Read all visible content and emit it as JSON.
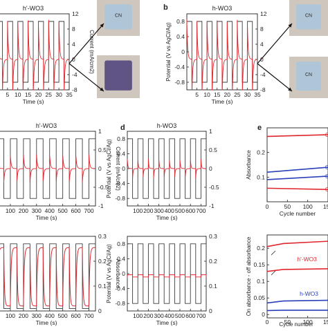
{
  "panel_letters": {
    "b": "b",
    "d": "d",
    "e": "e"
  },
  "colors": {
    "square": "#3a3a3a",
    "trace": "#e0262e",
    "blue": "#2a3fb8",
    "axis": "#222222",
    "photo_bg": "#cfc6bd",
    "film_clear": "#a9c6de",
    "film_dark": "#4b3f7a"
  },
  "photo_text": {
    "tl": "CN",
    "tr": "CN",
    "br": "CN"
  },
  "chart_data": [
    {
      "id": "a",
      "type": "line",
      "title": "h'-WO3",
      "xlabel": "Time (s)",
      "xticks": [
        5,
        10,
        15,
        20,
        25,
        30,
        35
      ],
      "xlim": [
        0,
        35
      ],
      "y2label": "Current (mA/cm2)",
      "y2ticks": [
        12,
        8,
        4,
        0,
        -4,
        -8
      ],
      "y2lim": [
        -8,
        12
      ],
      "series": [
        {
          "kind": "square",
          "period": 5,
          "high": 0.8,
          "low": -0.8
        },
        {
          "kind": "spike",
          "period": 5,
          "peak": 10.5,
          "decay": 0.35
        }
      ]
    },
    {
      "id": "b",
      "type": "line",
      "title": "h-WO3",
      "xlabel": "Time (s)",
      "xticks": [
        5,
        10,
        15,
        20,
        25,
        30,
        35
      ],
      "xlim": [
        0,
        35
      ],
      "ylabel": "Potential (V vs AgCl/Ag)",
      "yticks": [
        0.8,
        0.4,
        0,
        -0.4,
        -0.8
      ],
      "ylim": [
        -1,
        1
      ],
      "y2ticks": [
        12,
        8,
        4,
        0,
        -4,
        -8
      ],
      "y2lim": [
        -8,
        12
      ],
      "series": [
        {
          "kind": "square",
          "period": 5,
          "high": 0.8,
          "low": -0.8
        },
        {
          "kind": "spike",
          "period": 5,
          "peak": 10.5,
          "decay": 0.35
        }
      ]
    },
    {
      "id": "c",
      "type": "line",
      "title": "h'-WO3",
      "xlabel": "Time (s)",
      "xticks": [
        100,
        200,
        300,
        400,
        500,
        600,
        700
      ],
      "xlim": [
        0,
        750
      ],
      "y2label": "Current (mA/cm2)",
      "y2ticks": [
        1.0,
        0.5,
        0,
        -0.5,
        -1.0
      ],
      "y2lim": [
        -1,
        1
      ],
      "series": [
        {
          "kind": "square",
          "period": 100,
          "high": 0.8,
          "low": -0.8
        },
        {
          "kind": "spike",
          "period": 100,
          "peak": 0.38,
          "decay": 6
        }
      ]
    },
    {
      "id": "d",
      "type": "line",
      "title": "h-WO3",
      "xlabel": "Time (s)",
      "xticks": [
        100,
        200,
        300,
        400,
        500,
        600,
        700
      ],
      "xlim": [
        0,
        750
      ],
      "ylabel": "Potential (V vs AgCl/Ag)",
      "yticks": [
        0.8,
        0.4,
        0,
        -0.4,
        -0.8
      ],
      "ylim": [
        -1,
        1
      ],
      "y2ticks": [
        1.0,
        0.5,
        0,
        -0.5,
        -1.0
      ],
      "y2lim": [
        -1,
        1
      ],
      "series": [
        {
          "kind": "square",
          "period": 100,
          "high": 0.8,
          "low": -0.8
        },
        {
          "kind": "spike",
          "period": 100,
          "peak": 0.26,
          "decay": 5
        }
      ]
    },
    {
      "id": "e_top",
      "type": "line",
      "xlabel": "Cycle number",
      "xticks": [
        0,
        50,
        100,
        150
      ],
      "xlim": [
        0,
        150
      ],
      "ylabel": "Absorbance",
      "yticks": [
        0.1,
        0.2
      ],
      "ylim": [
        0.0,
        0.3
      ],
      "right_labels": [
        "0",
        "0",
        "0",
        "0"
      ],
      "series": [
        {
          "color": "red",
          "values": [
            [
              0,
              0.265
            ],
            [
              150,
              0.272
            ]
          ]
        },
        {
          "color": "blue",
          "values": [
            [
              0,
              0.12
            ],
            [
              150,
              0.14
            ]
          ]
        },
        {
          "color": "blue",
          "values": [
            [
              0,
              0.09
            ],
            [
              150,
              0.104
            ]
          ]
        },
        {
          "color": "red",
          "values": [
            [
              0,
              0.055
            ],
            [
              150,
              0.05
            ]
          ]
        }
      ]
    },
    {
      "id": "e_bottom",
      "type": "line",
      "xlabel": "Cycle number",
      "xticks": [
        0,
        50,
        100,
        150
      ],
      "xlim": [
        0,
        150
      ],
      "ylabel": "On absorbance - off absorbance",
      "yticks": [
        0.0,
        0.05,
        0.1,
        0.15,
        0.2
      ],
      "ylim": [
        -0.01,
        0.24
      ],
      "annotations": [
        "h'-WO3",
        "h-WO3"
      ],
      "series": [
        {
          "color": "red",
          "values": [
            [
              0,
              0.205
            ],
            [
              40,
              0.214
            ],
            [
              150,
              0.221
            ]
          ]
        },
        {
          "color": "red",
          "values": [
            [
              0,
              0.13
            ],
            [
              40,
              0.136
            ],
            [
              150,
              0.138
            ]
          ]
        },
        {
          "color": "blue",
          "values": [
            [
              0,
              0.035
            ],
            [
              40,
              0.041
            ],
            [
              150,
              0.043
            ]
          ]
        },
        {
          "color": "blue",
          "values": [
            [
              0,
              0.012
            ],
            [
              40,
              0.013
            ],
            [
              150,
              0.013
            ]
          ]
        }
      ]
    },
    {
      "id": "f",
      "type": "line",
      "xlabel": "Time (s)",
      "xticks": [
        100,
        200,
        300,
        400,
        500,
        600,
        700
      ],
      "xlim": [
        0,
        750
      ],
      "y2label": "Absorbance",
      "y2ticks": [
        0.3,
        0.2,
        0.1,
        0
      ],
      "y2lim": [
        0,
        0.3
      ],
      "series": [
        {
          "kind": "square",
          "period": 100,
          "high": 0.27,
          "low": 0.01
        },
        {
          "kind": "absorb",
          "period": 100,
          "high": 0.255,
          "low": 0.02
        }
      ]
    },
    {
      "id": "g",
      "type": "line",
      "xlabel": "Time (s)",
      "xticks": [
        100,
        200,
        300,
        400,
        500,
        600,
        700
      ],
      "xlim": [
        0,
        750
      ],
      "ylabel": "Potential (V vs AgCl/Ag)",
      "yticks": [
        0.8,
        0.4,
        0,
        -0.4,
        -0.8
      ],
      "ylim": [
        -1,
        1
      ],
      "y2ticks": [
        0.3,
        0.2,
        0.1,
        0
      ],
      "y2lim": [
        0,
        0.3
      ],
      "series": [
        {
          "kind": "square",
          "period": 100,
          "high": 0.8,
          "low": -0.8
        },
        {
          "kind": "flat",
          "period": 100,
          "high": -0.03,
          "low": -0.09
        }
      ]
    }
  ]
}
